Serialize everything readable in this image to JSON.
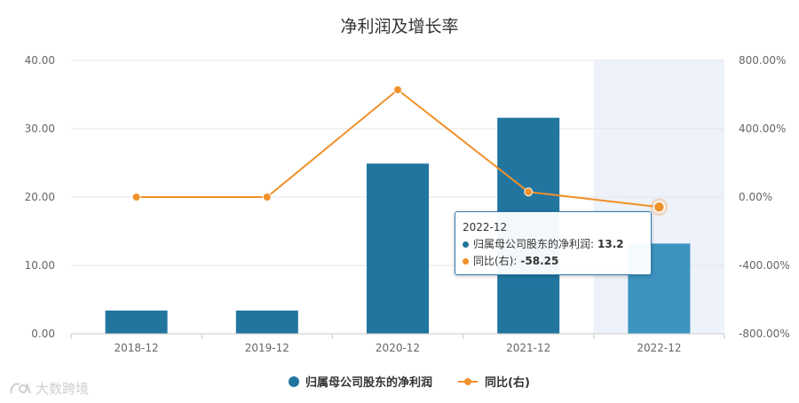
{
  "chart_data": {
    "type": "bar",
    "title": "净利润及增长率",
    "categories": [
      "2018-12",
      "2019-12",
      "2020-12",
      "2021-12",
      "2022-12"
    ],
    "series": [
      {
        "name": "归属母公司股东的净利润",
        "type": "bar",
        "axis": "left",
        "color": "#21759f",
        "highlight_color": "#3d93bf",
        "values": [
          3.4,
          3.4,
          24.9,
          31.6,
          13.2
        ]
      },
      {
        "name": "同比(右)",
        "type": "line",
        "axis": "right",
        "color": "#f0912a",
        "values": [
          0.0,
          0.0,
          628.0,
          30.0,
          -58.25
        ]
      }
    ],
    "y_left": {
      "ylim": [
        0,
        40
      ],
      "ticks": [
        "0.00",
        "10.00",
        "20.00",
        "30.00",
        "40.00"
      ]
    },
    "y_right": {
      "ylim": [
        -800,
        800
      ],
      "ticks": [
        "-800.00%",
        "-400.00%",
        "0.00%",
        "400.00%",
        "800.00%"
      ]
    },
    "legend_position": "bottom-center",
    "grid": true,
    "highlighted_category": "2022-12"
  },
  "tooltip": {
    "header": "2022-12",
    "rows": [
      {
        "label": "归属母公司股东的净利润:",
        "value": "13.2"
      },
      {
        "label": "同比(右):",
        "value": "-58.25"
      }
    ]
  },
  "watermark": {
    "text": "大数跨境"
  }
}
